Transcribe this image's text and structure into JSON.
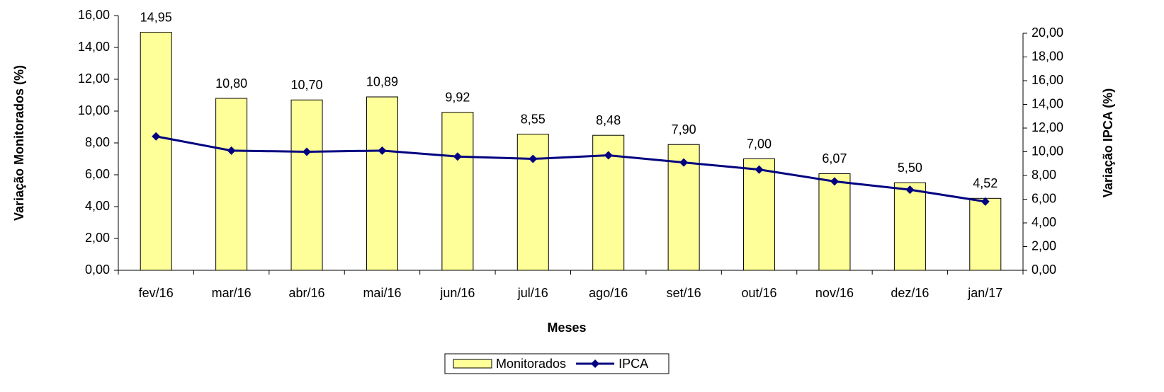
{
  "chart_data": {
    "type": "bar_line",
    "x_label": "Meses",
    "y_label": "Variação Monitorados (%)",
    "y2_label": "Variação IPCA (%)",
    "categories": [
      "fev/16",
      "mar/16",
      "abr/16",
      "mai/16",
      "jun/16",
      "jul/16",
      "ago/16",
      "set/16",
      "out/16",
      "nov/16",
      "dez/16",
      "jan/17"
    ],
    "series": [
      {
        "name": "Monitorados",
        "type": "bar",
        "color": "#ffff99",
        "values": [
          14.95,
          10.8,
          10.7,
          10.89,
          9.92,
          8.55,
          8.48,
          7.9,
          7.0,
          6.07,
          5.5,
          4.52
        ],
        "value_labels": [
          "14,95",
          "10,80",
          "10,70",
          "10,89",
          "9,92",
          "8,55",
          "8,48",
          "7,90",
          "7,00",
          "6,07",
          "5,50",
          "4,52"
        ]
      },
      {
        "name": "IPCA",
        "type": "line",
        "axis": "y2",
        "color": "#000080",
        "values": [
          11.3,
          10.1,
          10.0,
          10.1,
          9.6,
          9.4,
          9.7,
          9.1,
          8.5,
          7.5,
          6.8,
          5.8
        ]
      }
    ],
    "ylim": [
      0,
      16
    ],
    "yticks": [
      {
        "value": 0,
        "label": "0,00"
      },
      {
        "value": 2,
        "label": "2,00"
      },
      {
        "value": 4,
        "label": "4,00"
      },
      {
        "value": 6,
        "label": "6,00"
      },
      {
        "value": 8,
        "label": "8,00"
      },
      {
        "value": 10,
        "label": "10,00"
      },
      {
        "value": 12,
        "label": "12,00"
      },
      {
        "value": 14,
        "label": "14,00"
      },
      {
        "value": 16,
        "label": "16,00"
      }
    ],
    "y2lim": [
      0,
      20
    ],
    "y2ticks": [
      {
        "value": 0,
        "label": "0,00"
      },
      {
        "value": 2,
        "label": "2,00"
      },
      {
        "value": 4,
        "label": "4,00"
      },
      {
        "value": 6,
        "label": "6,00"
      },
      {
        "value": 8,
        "label": "8,00"
      },
      {
        "value": 10,
        "label": "10,00"
      },
      {
        "value": 12,
        "label": "12,00"
      },
      {
        "value": 14,
        "label": "14,00"
      },
      {
        "value": 16,
        "label": "16,00"
      },
      {
        "value": 18,
        "label": "18,00"
      },
      {
        "value": 20,
        "label": "20,00"
      }
    ],
    "legend": "bottom"
  }
}
